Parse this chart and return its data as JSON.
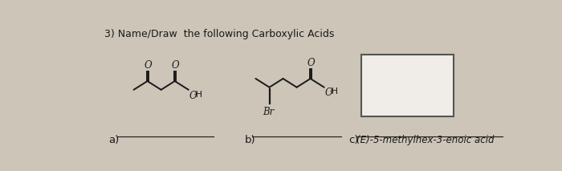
{
  "title": "3) Name/Draw  the following Carboxylic Acids",
  "bg_color": "#ccc5b8",
  "label_a": "a)",
  "label_b": "b)",
  "label_c": "c)",
  "answer_c": "(E)-5-methylhex-3-enoic acid",
  "box_color": "#f0ede8",
  "box_edge_color": "#555555",
  "line_color": "#1a1a1a",
  "text_color": "#1a1a1a",
  "title_fontsize": 9.0,
  "label_fontsize": 9.5,
  "mol_fontsize": 8.5
}
